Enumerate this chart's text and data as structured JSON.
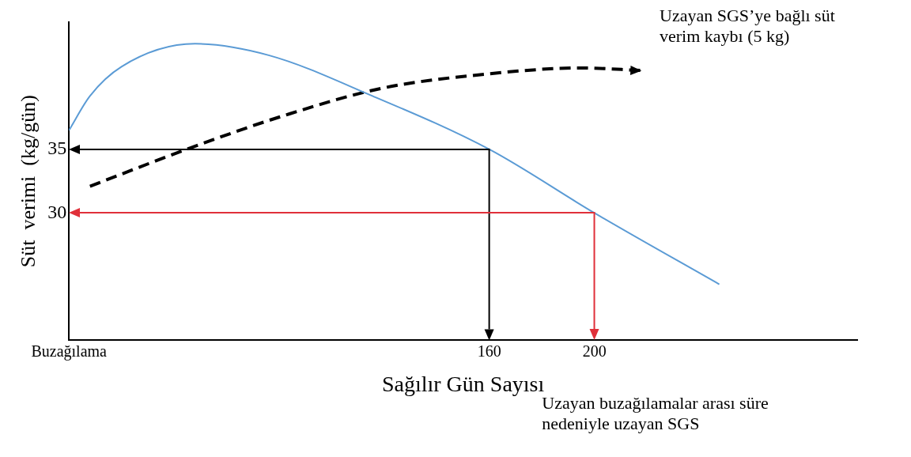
{
  "chart_data": {
    "type": "line",
    "xlabel": "Sağılır Gün Sayısı",
    "ylabel": "Süt  verimi  (kg/gün)",
    "xlim": [
      0,
      300
    ],
    "ylim": [
      20,
      45
    ],
    "xticks": [
      {
        "value": 0,
        "label": "Buzağılama"
      },
      160,
      200
    ],
    "yticks": [
      30,
      35
    ],
    "grid": false,
    "legend": false,
    "marker": "none",
    "series": [
      {
        "color": "#5b9bd5",
        "line_style": "solid",
        "x": [
          0,
          8,
          20,
          48,
          76,
          115.5,
          160,
          200,
          247.5
        ],
        "values": [
          36.5,
          39.2,
          41.5,
          43.3,
          42.4,
          39.2,
          35,
          30,
          24.4
        ]
      },
      {
        "color": "#000000",
        "line_style": "dashed",
        "x": [
          8,
          46,
          82.5,
          119,
          158,
          195,
          218
        ],
        "values": [
          32.1,
          35.1,
          37.7,
          39.8,
          40.9,
          41.4,
          41.2
        ]
      }
    ],
    "annotations": [
      "Uzayan SGS’ye bağlı süt verim kaybı (5 kg)",
      "Uzayan buzağılamalar arası süre nedeniyle uzayan SGS"
    ]
  }
}
